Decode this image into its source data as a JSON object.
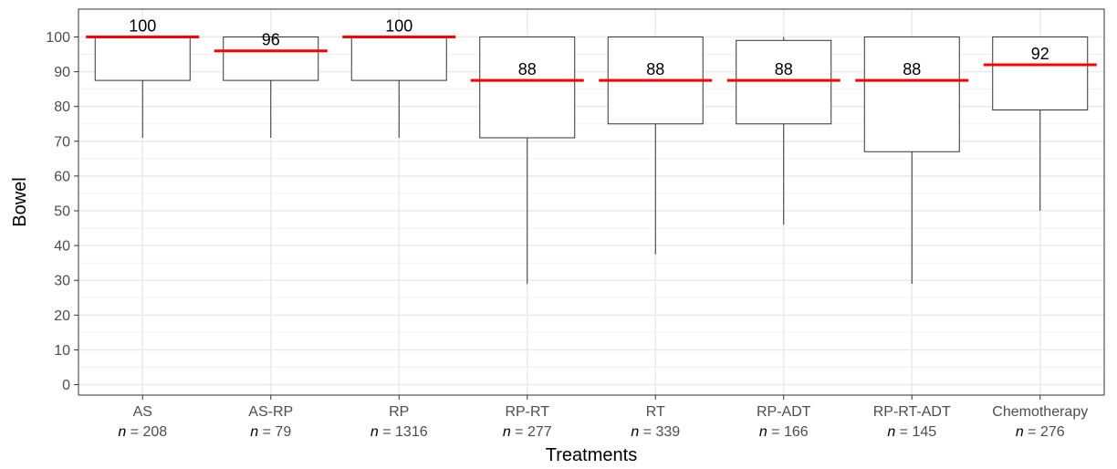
{
  "chart_data": {
    "type": "boxplot",
    "xlabel": "Treatments",
    "ylabel": "Bowel",
    "ylim": [
      -3,
      108
    ],
    "yticks": [
      0,
      10,
      20,
      30,
      40,
      50,
      60,
      70,
      80,
      90,
      100
    ],
    "grid": true,
    "n_prefix": "n",
    "categories": [
      "AS",
      "AS-RP",
      "RP",
      "RP-RT",
      "RT",
      "RP-ADT",
      "RP-RT-ADT",
      "Chemotherapy"
    ],
    "n": [
      "= 208",
      "= 79",
      "= 1316",
      "= 277",
      "= 339",
      "= 166",
      "= 145",
      "= 276"
    ],
    "boxes": [
      {
        "q1": 87.5,
        "q3": 100,
        "whisker_low": 71,
        "whisker_high": 100,
        "median": 100,
        "median_label": "100"
      },
      {
        "q1": 87.5,
        "q3": 100,
        "whisker_low": 71,
        "whisker_high": 100,
        "median": 96,
        "median_label": "96"
      },
      {
        "q1": 87.5,
        "q3": 100,
        "whisker_low": 71,
        "whisker_high": 100,
        "median": 100,
        "median_label": "100"
      },
      {
        "q1": 71,
        "q3": 100,
        "whisker_low": 29,
        "whisker_high": 100,
        "median": 87.5,
        "median_label": "88"
      },
      {
        "q1": 75,
        "q3": 100,
        "whisker_low": 37.5,
        "whisker_high": 100,
        "median": 87.5,
        "median_label": "88"
      },
      {
        "q1": 75,
        "q3": 99,
        "whisker_low": 46,
        "whisker_high": 100,
        "median": 87.5,
        "median_label": "88"
      },
      {
        "q1": 67,
        "q3": 100,
        "whisker_low": 29,
        "whisker_high": 100,
        "median": 87.5,
        "median_label": "88"
      },
      {
        "q1": 79,
        "q3": 100,
        "whisker_low": 50,
        "whisker_high": 100,
        "median": 92,
        "median_label": "92"
      }
    ],
    "colors": {
      "median_line": "#ff0000",
      "box_stroke": "#333333",
      "grid_major": "#ebebeb",
      "grid_minor": "#f2f2f2",
      "panel_border": "#333333"
    }
  }
}
